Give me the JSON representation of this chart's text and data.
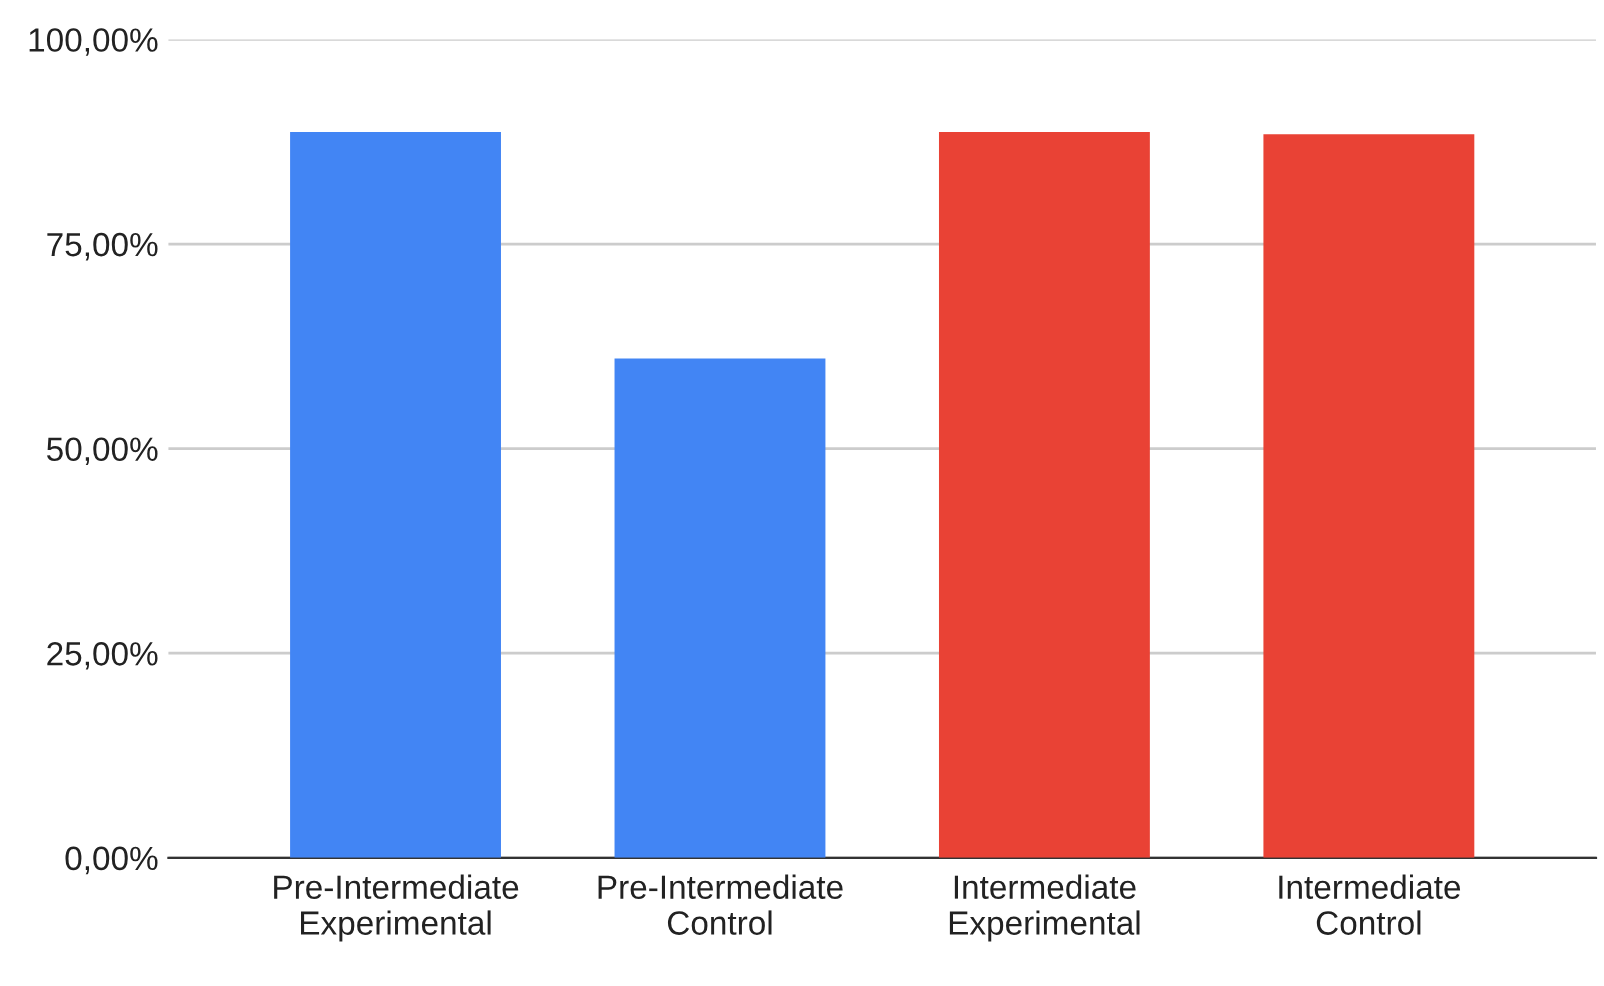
{
  "chart_data": {
    "type": "bar",
    "categories": [
      "Pre-Intermediate\nExperimental",
      "Pre-Intermediate\nControl",
      "Intermediate\nExperimental",
      "Intermediate\nControl"
    ],
    "values": [
      88.7,
      61.0,
      88.7,
      88.4
    ],
    "colors": [
      "#4285f4",
      "#4285f4",
      "#e94235",
      "#e94235"
    ],
    "ylim": [
      0,
      100
    ],
    "yticks": [
      {
        "value": 0,
        "label": "0,00%"
      },
      {
        "value": 25,
        "label": "25,00%"
      },
      {
        "value": 50,
        "label": "50,00%"
      },
      {
        "value": 75,
        "label": "75,00%"
      },
      {
        "value": 100,
        "label": "100,00%"
      }
    ],
    "grid": "y"
  }
}
